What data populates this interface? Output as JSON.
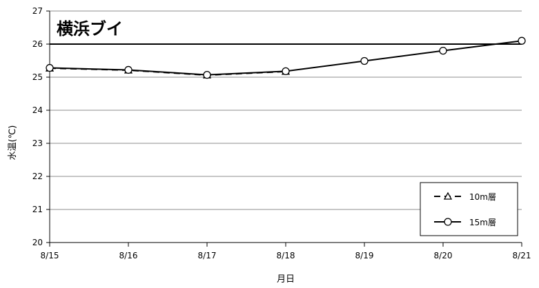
{
  "chart_data": {
    "type": "line",
    "title": "横浜ブイ",
    "xlabel": "月日",
    "ylabel": "水温(℃)",
    "categories": [
      "8/15",
      "8/16",
      "8/17",
      "8/18",
      "8/19",
      "8/20",
      "8/21"
    ],
    "ylim": [
      20,
      27
    ],
    "yticks": [
      20,
      21,
      22,
      23,
      24,
      25,
      26,
      27
    ],
    "grid": true,
    "legend_position": "bottom-right",
    "reference_line": {
      "value": 26
    },
    "series": [
      {
        "name": "10m層",
        "marker": "triangle",
        "line_style": "dashed",
        "values": [
          25.27,
          25.21,
          25.06,
          25.17,
          null,
          null,
          null
        ]
      },
      {
        "name": "15m層",
        "marker": "circle",
        "line_style": "solid",
        "values": [
          25.28,
          25.22,
          25.07,
          25.18,
          25.49,
          25.8,
          26.1
        ]
      }
    ]
  }
}
